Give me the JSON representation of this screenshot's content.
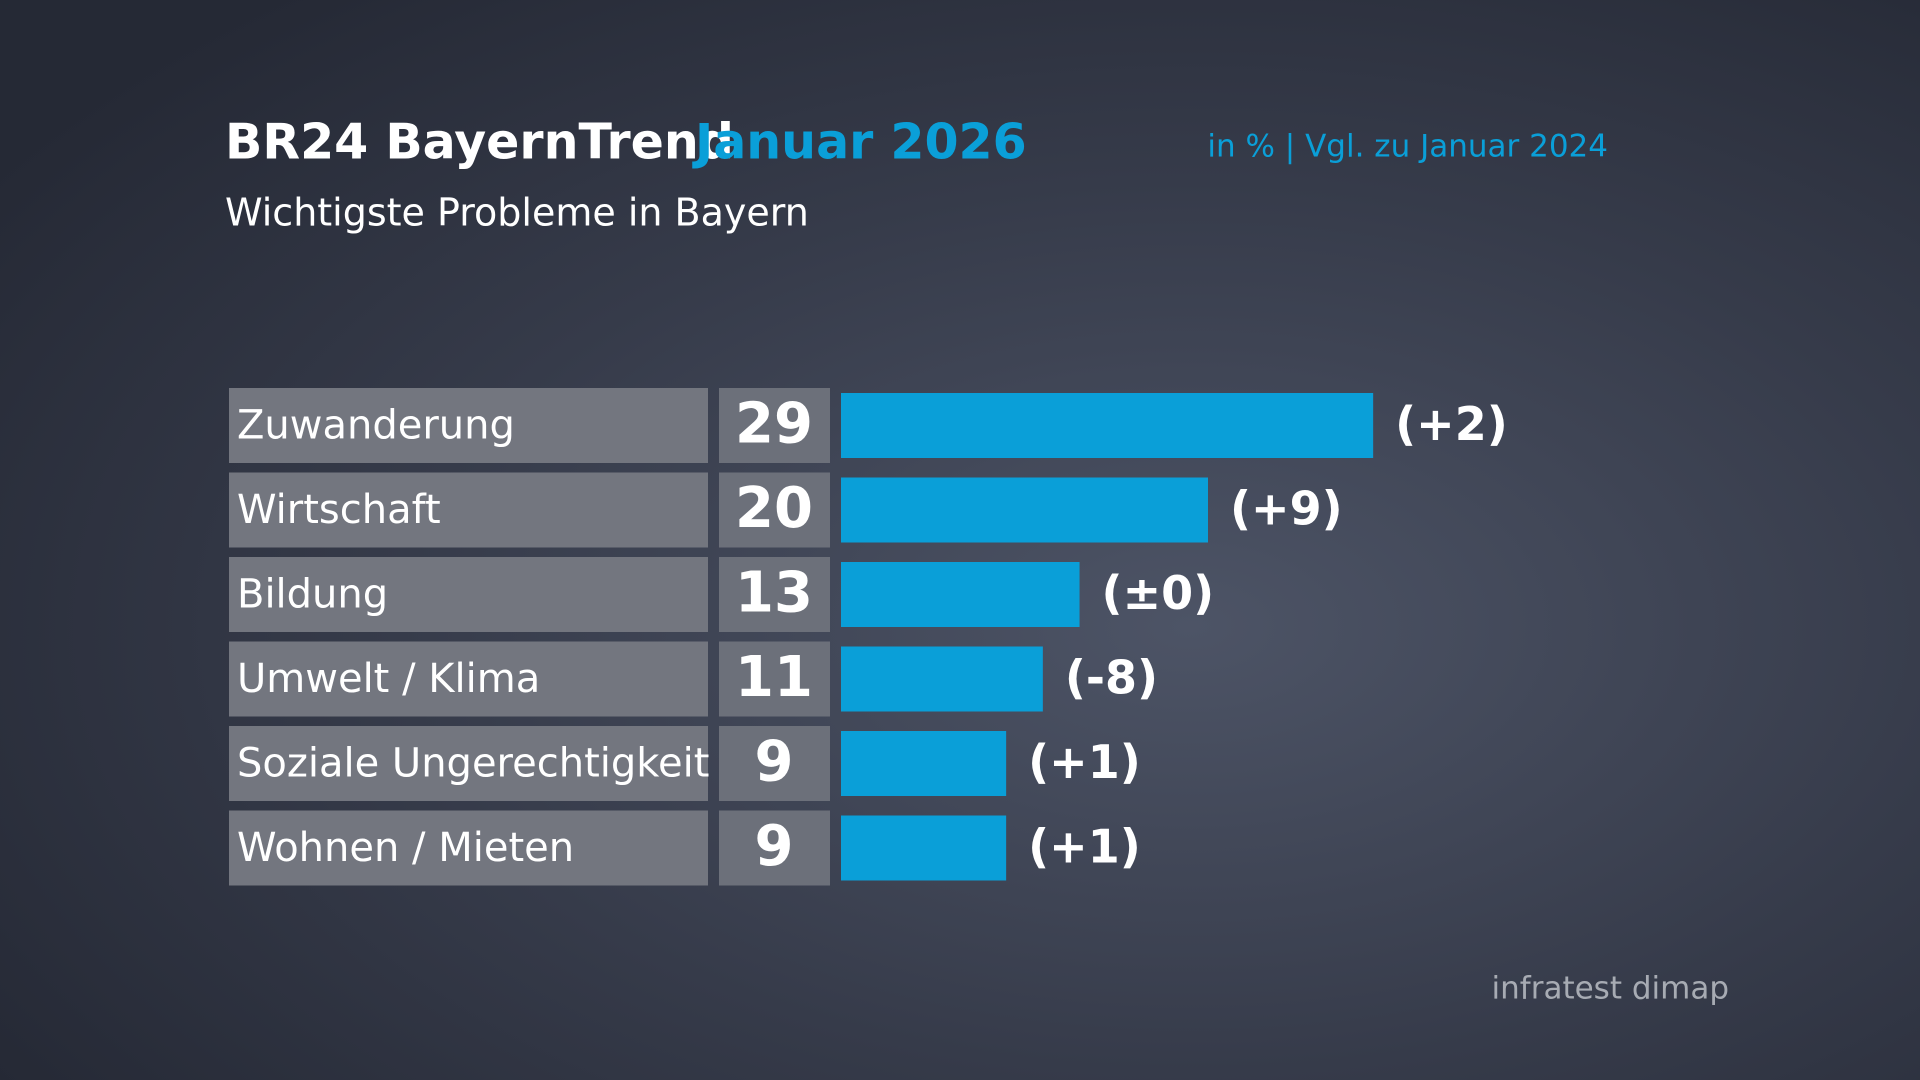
{
  "chart_data": {
    "type": "bar",
    "title": "BR24 BayernTrend",
    "title_highlight": "Januar 2026",
    "subtitle": "Wichtigste Probleme in Bayern",
    "note": "in % | Vgl. zu Januar 2024",
    "source": "infratest dimap",
    "categories": [
      "Zuwanderung",
      "Wirtschaft",
      "Bildung",
      "Umwelt / Klima",
      "Soziale Ungerechtigkeit",
      "Wohnen / Mieten"
    ],
    "values": [
      29,
      20,
      13,
      11,
      9,
      9
    ],
    "change_labels": [
      "(+2)",
      "(+9)",
      "(±0)",
      "(-8)",
      "(+1)",
      "(+1)"
    ],
    "color": "#0a9fd8"
  }
}
